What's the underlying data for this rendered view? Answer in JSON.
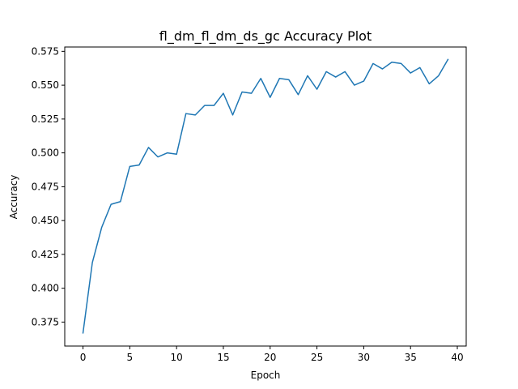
{
  "chart_data": {
    "type": "line",
    "title": "fl_dm_fl_dm_ds_gc Accuracy Plot",
    "xlabel": "Epoch",
    "ylabel": "Accuracy",
    "xlim": [
      -1.95,
      40.95
    ],
    "ylim": [
      0.3573,
      0.5782
    ],
    "xticks": [
      0,
      5,
      10,
      15,
      20,
      25,
      30,
      35,
      40
    ],
    "yticks": [
      0.375,
      0.4,
      0.425,
      0.45,
      0.475,
      0.5,
      0.525,
      0.55,
      0.575
    ],
    "yticks_labels": [
      "0.375",
      "0.400",
      "0.425",
      "0.450",
      "0.475",
      "0.500",
      "0.525",
      "0.550",
      "0.575"
    ],
    "grid": false,
    "series": [
      {
        "color": "#1f77b4",
        "x": [
          0,
          1,
          2,
          3,
          4,
          5,
          6,
          7,
          8,
          9,
          10,
          11,
          12,
          13,
          14,
          15,
          16,
          17,
          18,
          19,
          20,
          21,
          22,
          23,
          24,
          25,
          26,
          27,
          28,
          29,
          30,
          31,
          32,
          33,
          34,
          35,
          36,
          37,
          38,
          39
        ],
        "y": [
          0.367,
          0.419,
          0.445,
          0.462,
          0.464,
          0.49,
          0.491,
          0.504,
          0.497,
          0.5,
          0.499,
          0.529,
          0.528,
          0.535,
          0.535,
          0.544,
          0.528,
          0.545,
          0.544,
          0.555,
          0.541,
          0.555,
          0.554,
          0.543,
          0.557,
          0.547,
          0.56,
          0.556,
          0.56,
          0.55,
          0.553,
          0.566,
          0.562,
          0.567,
          0.566,
          0.559,
          0.563,
          0.551,
          0.557,
          0.569
        ]
      }
    ]
  }
}
